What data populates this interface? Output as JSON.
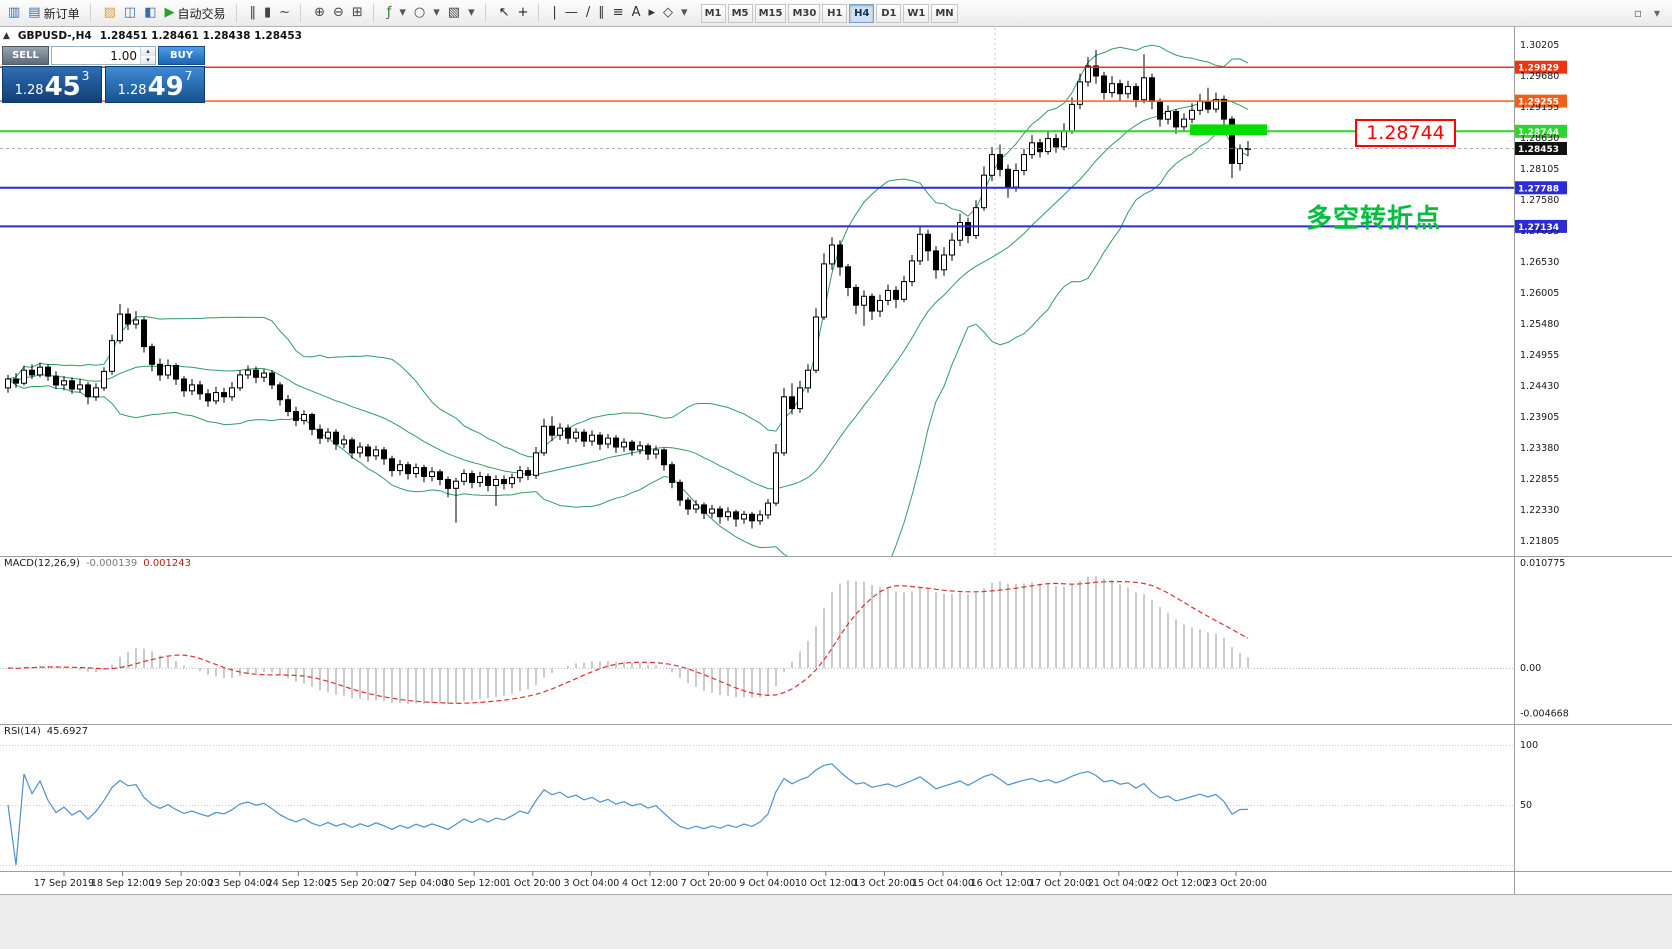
{
  "toolbar": {
    "groups": [
      {
        "items": [
          {
            "name": "charts-icon",
            "glyph": "▥",
            "color": "#3a6ea5"
          },
          {
            "name": "new-order-button",
            "glyph": "▤",
            "color": "#3a6ea5",
            "label": "新订单"
          }
        ]
      },
      {
        "items": [
          {
            "name": "profiles-icon",
            "glyph": "▨",
            "color": "#d7a13b"
          },
          {
            "name": "market-watch-icon",
            "glyph": "◫",
            "color": "#3a6ea5"
          },
          {
            "name": "navigator-icon",
            "glyph": "◧",
            "color": "#3a6ea5"
          },
          {
            "name": "auto-trading-button",
            "glyph": "▶",
            "color": "#2ca02c",
            "label": "自动交易"
          }
        ]
      },
      {
        "items": [
          {
            "name": "bar-chart-icon",
            "glyph": "‖",
            "color": "#444444"
          },
          {
            "name": "candlestick-chart-icon",
            "glyph": "▮",
            "color": "#444444"
          },
          {
            "name": "line-chart-icon",
            "glyph": "~",
            "color": "#444444"
          }
        ]
      },
      {
        "items": [
          {
            "name": "zoom-in-icon",
            "glyph": "⊕",
            "color": "#444444"
          },
          {
            "name": "zoom-out-icon",
            "glyph": "⊖",
            "color": "#444444"
          },
          {
            "name": "tile-windows-icon",
            "glyph": "⊞",
            "color": "#444444"
          }
        ]
      },
      {
        "items": [
          {
            "name": "indicators-icon",
            "glyph": "ƒ",
            "color": "#2c7a2c"
          },
          {
            "name": "indicators-caret",
            "glyph": "▾",
            "color": "#555555"
          },
          {
            "name": "periods-icon",
            "glyph": "○",
            "color": "#444444"
          },
          {
            "name": "periods-caret",
            "glyph": "▾",
            "color": "#555555"
          },
          {
            "name": "templates-icon",
            "glyph": "▧",
            "color": "#444444"
          },
          {
            "name": "templates-caret",
            "glyph": "▾",
            "color": "#555555"
          }
        ]
      },
      {
        "items": [
          {
            "name": "cursor-icon",
            "glyph": "↖",
            "color": "#222222"
          },
          {
            "name": "crosshair-icon",
            "glyph": "+",
            "color": "#222222"
          }
        ]
      },
      {
        "items": [
          {
            "name": "vertical-line-icon",
            "glyph": "|",
            "color": "#333333"
          },
          {
            "name": "horizontal-line-icon",
            "glyph": "—",
            "color": "#333333"
          },
          {
            "name": "trendline-icon",
            "glyph": "/",
            "color": "#333333"
          },
          {
            "name": "channel-icon",
            "glyph": "∥",
            "color": "#333333"
          },
          {
            "name": "fibonacci-icon",
            "glyph": "≡",
            "color": "#333333"
          },
          {
            "name": "text-icon",
            "glyph": "A",
            "color": "#333333"
          },
          {
            "name": "arrow-icon",
            "glyph": "▸",
            "color": "#333333"
          },
          {
            "name": "shapes-icon",
            "glyph": "◇",
            "color": "#333333"
          },
          {
            "name": "objects-caret",
            "glyph": "▾",
            "color": "#555555"
          }
        ]
      }
    ],
    "timeframes": [
      "M1",
      "M5",
      "M15",
      "M30",
      "H1",
      "H4",
      "D1",
      "W1",
      "MN"
    ],
    "active_timeframe": "H4",
    "right_items": [
      {
        "name": "dock-window-icon",
        "glyph": "▫",
        "color": "#666666"
      },
      {
        "name": "toolbar-options-caret",
        "glyph": "▾",
        "color": "#666666"
      }
    ]
  },
  "chart": {
    "collapse_glyph": "▲",
    "symbol_tf": "GBPUSD-,H4",
    "ohlc": "1.28451 1.28461 1.28438 1.28453"
  },
  "one_click": {
    "sell_label": "SELL",
    "buy_label": "BUY",
    "volume": "1.00",
    "spin_up": "▴",
    "spin_down": "▾",
    "sell_price": {
      "base": "1.28",
      "pips": "45",
      "sup": "3"
    },
    "buy_price": {
      "base": "1.28",
      "pips": "49",
      "sup": "7"
    }
  },
  "levels": [
    {
      "label": "1.29829",
      "price": 1.29829,
      "color": "#ee3311",
      "width": 1.5
    },
    {
      "label": "1.29255",
      "price": 1.29255,
      "color": "#f2601e",
      "width": 1.5
    },
    {
      "label": "1.28744",
      "price": 1.28744,
      "color": "#2fd42f",
      "width": 2
    },
    {
      "label": "1.27788",
      "price": 1.27788,
      "color": "#2b2bd8",
      "width": 2
    },
    {
      "label": "1.27134",
      "price": 1.27134,
      "color": "#2b2bd8",
      "width": 2
    }
  ],
  "current_price": {
    "label": "1.28453",
    "value": 1.28453,
    "tag_color": "#111111"
  },
  "zone": {
    "price_top": 1.2886,
    "price_bottom": 1.2868,
    "color": "#00dd00"
  },
  "annotations": {
    "price_callout": "1.28744",
    "callout_color": "#ff0000",
    "pivot_text": "多空转折点",
    "pivot_color": "#00bf3f"
  },
  "price_axis": [
    "1.30205",
    "1.29680",
    "1.29155",
    "1.28630",
    "1.28105",
    "1.27580",
    "1.27055",
    "1.26530",
    "1.26005",
    "1.25480",
    "1.24955",
    "1.24430",
    "1.23905",
    "1.23380",
    "1.22855",
    "1.22330",
    "1.21805"
  ],
  "time_axis": [
    "17 Sep 2019",
    "18 Sep 12:00",
    "19 Sep 20:00",
    "23 Sep 04:00",
    "24 Sep 12:00",
    "25 Sep 20:00",
    "27 Sep 04:00",
    "30 Sep 12:00",
    "1 Oct 20:00",
    "3 Oct 04:00",
    "4 Oct 12:00",
    "7 Oct 20:00",
    "9 Oct 04:00",
    "10 Oct 12:00",
    "13 Oct 20:00",
    "15 Oct 04:00",
    "16 Oct 12:00",
    "17 Oct 20:00",
    "21 Oct 04:00",
    "22 Oct 12:00",
    "23 Oct 20:00"
  ],
  "macd": {
    "name": "MACD(12,26,9)",
    "value1": "-0.000139",
    "value2": "0.001243",
    "axis": [
      "0.010775",
      "0.00",
      "-0.004668"
    ],
    "histogram_color": "#bdbdbd",
    "signal_color": "#e03030"
  },
  "rsi": {
    "name": "RSI(14)",
    "value": "45.6927",
    "axis": [
      "100",
      "50"
    ],
    "line_color": "#4f8fd0"
  },
  "chart_data": {
    "type": "candlestick",
    "symbol": "GBPUSD-",
    "timeframe": "H4",
    "indicators": [
      "Bollinger Bands (green)",
      "MACD(12,26,9)",
      "RSI(14)"
    ],
    "bollinger_color": "#2f9e5f",
    "candles": [
      [
        1.244,
        1.2462,
        1.2432,
        1.2455
      ],
      [
        1.2455,
        1.2465,
        1.244,
        1.2448
      ],
      [
        1.2448,
        1.2478,
        1.2444,
        1.247
      ],
      [
        1.247,
        1.248,
        1.2455,
        1.2462
      ],
      [
        1.2462,
        1.2483,
        1.2458,
        1.2475
      ],
      [
        1.2475,
        1.248,
        1.2452,
        1.246
      ],
      [
        1.246,
        1.2468,
        1.2438,
        1.2445
      ],
      [
        1.2445,
        1.246,
        1.2436,
        1.2452
      ],
      [
        1.2452,
        1.2458,
        1.243,
        1.2438
      ],
      [
        1.2438,
        1.2455,
        1.2432,
        1.2445
      ],
      [
        1.2445,
        1.245,
        1.2412,
        1.2425
      ],
      [
        1.2425,
        1.2448,
        1.2418,
        1.244
      ],
      [
        1.244,
        1.2475,
        1.2435,
        1.2468
      ],
      [
        1.2468,
        1.253,
        1.2462,
        1.252
      ],
      [
        1.252,
        1.2582,
        1.2515,
        1.2565
      ],
      [
        1.2565,
        1.2575,
        1.2538,
        1.2548
      ],
      [
        1.2548,
        1.257,
        1.254,
        1.2555
      ],
      [
        1.2555,
        1.256,
        1.25,
        1.251
      ],
      [
        1.251,
        1.2515,
        1.2468,
        1.248
      ],
      [
        1.248,
        1.249,
        1.2452,
        1.2462
      ],
      [
        1.2462,
        1.2488,
        1.2455,
        1.2478
      ],
      [
        1.2478,
        1.2482,
        1.2445,
        1.2455
      ],
      [
        1.2455,
        1.246,
        1.2425,
        1.2435
      ],
      [
        1.2435,
        1.2455,
        1.2428,
        1.2445
      ],
      [
        1.2445,
        1.2452,
        1.242,
        1.243
      ],
      [
        1.243,
        1.2438,
        1.2408,
        1.2418
      ],
      [
        1.2418,
        1.2442,
        1.2412,
        1.2432
      ],
      [
        1.2432,
        1.244,
        1.2415,
        1.2425
      ],
      [
        1.2425,
        1.245,
        1.2418,
        1.244
      ],
      [
        1.244,
        1.247,
        1.2435,
        1.2462
      ],
      [
        1.2462,
        1.2478,
        1.2455,
        1.247
      ],
      [
        1.247,
        1.2476,
        1.2448,
        1.2458
      ],
      [
        1.2458,
        1.2472,
        1.245,
        1.2465
      ],
      [
        1.2465,
        1.247,
        1.2438,
        1.2445
      ],
      [
        1.2445,
        1.245,
        1.241,
        1.242
      ],
      [
        1.242,
        1.2428,
        1.2392,
        1.24
      ],
      [
        1.24,
        1.2408,
        1.2375,
        1.2385
      ],
      [
        1.2385,
        1.2402,
        1.2378,
        1.2395
      ],
      [
        1.2395,
        1.2398,
        1.236,
        1.237
      ],
      [
        1.237,
        1.2378,
        1.2345,
        1.2355
      ],
      [
        1.2355,
        1.2372,
        1.2348,
        1.2365
      ],
      [
        1.2365,
        1.237,
        1.2335,
        1.2345
      ],
      [
        1.2345,
        1.236,
        1.2338,
        1.2352
      ],
      [
        1.2352,
        1.2356,
        1.232,
        1.233
      ],
      [
        1.233,
        1.2348,
        1.2322,
        1.234
      ],
      [
        1.234,
        1.2345,
        1.2315,
        1.2325
      ],
      [
        1.2325,
        1.2342,
        1.2318,
        1.2335
      ],
      [
        1.2335,
        1.234,
        1.231,
        1.232
      ],
      [
        1.232,
        1.2325,
        1.229,
        1.23
      ],
      [
        1.23,
        1.2318,
        1.2292,
        1.231
      ],
      [
        1.231,
        1.2315,
        1.2285,
        1.2295
      ],
      [
        1.2295,
        1.2312,
        1.2288,
        1.2305
      ],
      [
        1.2305,
        1.231,
        1.228,
        1.229
      ],
      [
        1.229,
        1.2306,
        1.2282,
        1.2298
      ],
      [
        1.2298,
        1.2302,
        1.2275,
        1.2285
      ],
      [
        1.2285,
        1.229,
        1.2255,
        1.227
      ],
      [
        1.227,
        1.2288,
        1.2212,
        1.2282
      ],
      [
        1.2282,
        1.2302,
        1.2275,
        1.2295
      ],
      [
        1.2295,
        1.23,
        1.227,
        1.228
      ],
      [
        1.228,
        1.2298,
        1.2272,
        1.229
      ],
      [
        1.229,
        1.2295,
        1.2265,
        1.2275
      ],
      [
        1.2275,
        1.2292,
        1.224,
        1.2285
      ],
      [
        1.2285,
        1.2292,
        1.2268,
        1.2278
      ],
      [
        1.2278,
        1.2295,
        1.227,
        1.2288
      ],
      [
        1.2288,
        1.2308,
        1.228,
        1.23
      ],
      [
        1.23,
        1.2306,
        1.2284,
        1.2292
      ],
      [
        1.2292,
        1.234,
        1.2286,
        1.233
      ],
      [
        1.233,
        1.2388,
        1.2325,
        1.2375
      ],
      [
        1.2375,
        1.2392,
        1.235,
        1.236
      ],
      [
        1.236,
        1.238,
        1.2352,
        1.2372
      ],
      [
        1.2372,
        1.2378,
        1.2345,
        1.2355
      ],
      [
        1.2355,
        1.2372,
        1.2348,
        1.2365
      ],
      [
        1.2365,
        1.237,
        1.234,
        1.235
      ],
      [
        1.235,
        1.2368,
        1.2342,
        1.236
      ],
      [
        1.236,
        1.2365,
        1.2335,
        1.2345
      ],
      [
        1.2345,
        1.2362,
        1.2338,
        1.2355
      ],
      [
        1.2355,
        1.236,
        1.233,
        1.234
      ],
      [
        1.234,
        1.2355,
        1.2332,
        1.2348
      ],
      [
        1.2348,
        1.2352,
        1.2325,
        1.2335
      ],
      [
        1.2335,
        1.235,
        1.2328,
        1.2342
      ],
      [
        1.2342,
        1.2346,
        1.2318,
        1.2328
      ],
      [
        1.2328,
        1.2342,
        1.232,
        1.2335
      ],
      [
        1.2335,
        1.2338,
        1.23,
        1.231
      ],
      [
        1.231,
        1.2315,
        1.227,
        1.228
      ],
      [
        1.228,
        1.2285,
        1.224,
        1.225
      ],
      [
        1.225,
        1.2255,
        1.2225,
        1.2235
      ],
      [
        1.2235,
        1.225,
        1.2228,
        1.2242
      ],
      [
        1.2242,
        1.2246,
        1.2218,
        1.2228
      ],
      [
        1.2228,
        1.2242,
        1.222,
        1.2235
      ],
      [
        1.2235,
        1.224,
        1.221,
        1.2222
      ],
      [
        1.2222,
        1.2238,
        1.2215,
        1.223
      ],
      [
        1.223,
        1.2234,
        1.2205,
        1.2218
      ],
      [
        1.2218,
        1.2232,
        1.221,
        1.2226
      ],
      [
        1.2226,
        1.223,
        1.2202,
        1.2215
      ],
      [
        1.2215,
        1.2233,
        1.2208,
        1.2225
      ],
      [
        1.2225,
        1.2252,
        1.2218,
        1.2245
      ],
      [
        1.2245,
        1.2345,
        1.224,
        1.233
      ],
      [
        1.233,
        1.244,
        1.2325,
        1.2425
      ],
      [
        1.2425,
        1.2448,
        1.2395,
        1.2405
      ],
      [
        1.2405,
        1.2452,
        1.2398,
        1.244
      ],
      [
        1.244,
        1.248,
        1.2432,
        1.247
      ],
      [
        1.247,
        1.2575,
        1.2465,
        1.256
      ],
      [
        1.256,
        1.2668,
        1.2555,
        1.265
      ],
      [
        1.265,
        1.2695,
        1.264,
        1.2682
      ],
      [
        1.2682,
        1.269,
        1.263,
        1.2645
      ],
      [
        1.2645,
        1.265,
        1.2595,
        1.261
      ],
      [
        1.261,
        1.2615,
        1.2565,
        1.258
      ],
      [
        1.258,
        1.2605,
        1.2545,
        1.2595
      ],
      [
        1.2595,
        1.26,
        1.2555,
        1.257
      ],
      [
        1.257,
        1.2598,
        1.256,
        1.2588
      ],
      [
        1.2588,
        1.2615,
        1.258,
        1.2605
      ],
      [
        1.2605,
        1.2612,
        1.2575,
        1.259
      ],
      [
        1.259,
        1.263,
        1.2585,
        1.262
      ],
      [
        1.262,
        1.2665,
        1.2612,
        1.2655
      ],
      [
        1.2655,
        1.2712,
        1.2648,
        1.27
      ],
      [
        1.27,
        1.2708,
        1.2655,
        1.2672
      ],
      [
        1.2672,
        1.268,
        1.2625,
        1.264
      ],
      [
        1.264,
        1.2678,
        1.263,
        1.2665
      ],
      [
        1.2665,
        1.2702,
        1.2655,
        1.269
      ],
      [
        1.269,
        1.2735,
        1.268,
        1.272
      ],
      [
        1.272,
        1.2728,
        1.2685,
        1.2698
      ],
      [
        1.2698,
        1.2758,
        1.2692,
        1.2745
      ],
      [
        1.2745,
        1.2815,
        1.274,
        1.28
      ],
      [
        1.28,
        1.2848,
        1.279,
        1.2835
      ],
      [
        1.2835,
        1.2852,
        1.2798,
        1.281
      ],
      [
        1.281,
        1.2818,
        1.2762,
        1.278
      ],
      [
        1.278,
        1.282,
        1.2772,
        1.2808
      ],
      [
        1.2808,
        1.2845,
        1.28,
        1.2835
      ],
      [
        1.2835,
        1.2868,
        1.2828,
        1.2855
      ],
      [
        1.2855,
        1.2862,
        1.283,
        1.284
      ],
      [
        1.284,
        1.2875,
        1.2835,
        1.2862
      ],
      [
        1.2862,
        1.287,
        1.2838,
        1.2848
      ],
      [
        1.2848,
        1.2888,
        1.2842,
        1.2875
      ],
      [
        1.2875,
        1.2932,
        1.287,
        1.292
      ],
      [
        1.292,
        1.2972,
        1.2912,
        1.2958
      ],
      [
        1.2958,
        1.3,
        1.295,
        1.2985
      ],
      [
        1.2985,
        1.3012,
        1.2955,
        1.2968
      ],
      [
        1.2968,
        1.2975,
        1.2928,
        1.294
      ],
      [
        1.294,
        1.2968,
        1.2932,
        1.2955
      ],
      [
        1.2955,
        1.2962,
        1.2925,
        1.2938
      ],
      [
        1.2938,
        1.296,
        1.293,
        1.295
      ],
      [
        1.295,
        1.2956,
        1.2915,
        1.2928
      ],
      [
        1.2928,
        1.3005,
        1.2922,
        1.2965
      ],
      [
        1.2965,
        1.2972,
        1.2912,
        1.2925
      ],
      [
        1.2925,
        1.293,
        1.2882,
        1.2895
      ],
      [
        1.2895,
        1.2918,
        1.2886,
        1.2908
      ],
      [
        1.2908,
        1.2912,
        1.287,
        1.2882
      ],
      [
        1.2882,
        1.2905,
        1.2875,
        1.2895
      ],
      [
        1.2895,
        1.2922,
        1.2888,
        1.291
      ],
      [
        1.291,
        1.2938,
        1.2902,
        1.2925
      ],
      [
        1.2925,
        1.2948,
        1.2905,
        1.2912
      ],
      [
        1.2912,
        1.294,
        1.2906,
        1.2928
      ],
      [
        1.2928,
        1.2935,
        1.2885,
        1.2895
      ],
      [
        1.2895,
        1.29,
        1.2795,
        1.282
      ],
      [
        1.282,
        1.2852,
        1.2808,
        1.2845
      ],
      [
        1.2845,
        1.2858,
        1.2832,
        1.28453
      ]
    ]
  }
}
